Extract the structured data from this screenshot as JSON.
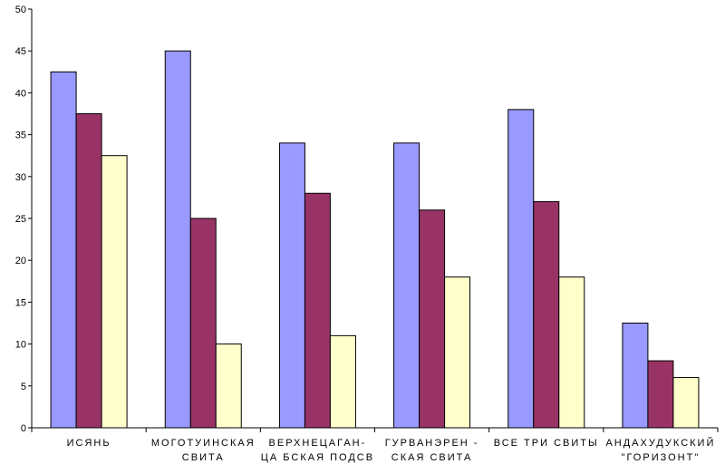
{
  "chart_data": {
    "type": "bar",
    "categories": [
      [
        "ИСЯНЬ"
      ],
      [
        "МОГОТУИНСКАЯ",
        "СВИТА"
      ],
      [
        "ВЕРХНЕЦАГАН-",
        "ЦА БСКАЯ ПОДСВ"
      ],
      [
        "ГУРВАНЭРЕН -",
        "СКАЯ СВИТА"
      ],
      [
        "ВСЕ ТРИ СВИТЫ"
      ],
      [
        "АНДАХУДУКСКИЙ",
        "\"ГОРИЗОНТ\""
      ]
    ],
    "series": [
      {
        "color": "#9999ff",
        "values": [
          42.5,
          45,
          34,
          34,
          38,
          12.5
        ]
      },
      {
        "color": "#993366",
        "values": [
          37.5,
          25,
          28,
          26,
          27,
          8
        ]
      },
      {
        "color": "#ffffcc",
        "values": [
          32.5,
          10,
          11,
          18,
          18,
          6
        ]
      }
    ],
    "ylim": [
      0,
      50
    ],
    "yticks": [
      "0",
      "5",
      "10",
      "15",
      "20",
      "25",
      "30",
      "35",
      "40",
      "45",
      "50"
    ],
    "grid": false,
    "legend": "none",
    "title": "",
    "xlabel": "",
    "ylabel": ""
  }
}
